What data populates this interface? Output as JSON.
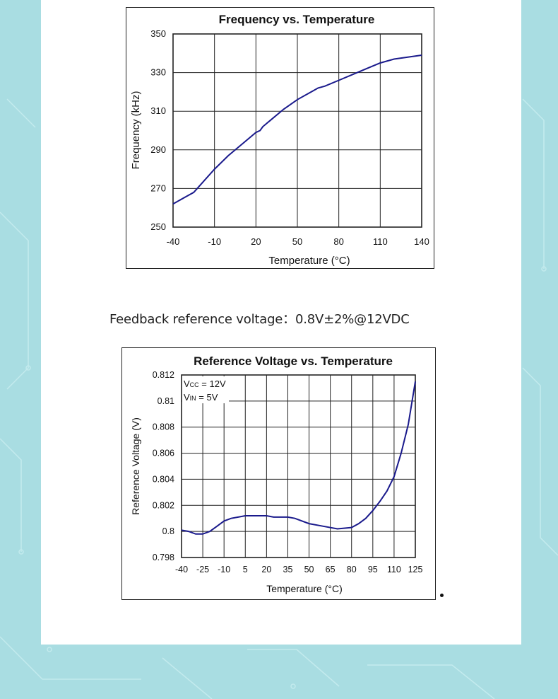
{
  "colors": {
    "background": "#a9dde2",
    "curve": "#1a1a8c",
    "grid": "#222222"
  },
  "caption": "Feedback reference voltage：0.8V±2%@12VDC",
  "chart_data": [
    {
      "type": "line",
      "title": "Frequency vs. Temperature",
      "xlabel": "Temperature (°C)",
      "ylabel": "Frequency (kHz)",
      "xlim": [
        -40,
        140
      ],
      "ylim": [
        250,
        350
      ],
      "xticks": [
        "-40",
        "-10",
        "20",
        "50",
        "80",
        "110",
        "140"
      ],
      "yticks": [
        "250",
        "270",
        "290",
        "310",
        "330",
        "350"
      ],
      "grid": true,
      "series": [
        {
          "x": [
            -40,
            -30,
            -25,
            -20,
            -10,
            0,
            10,
            20,
            23,
            25,
            30,
            40,
            50,
            60,
            65,
            70,
            80,
            90,
            100,
            110,
            120,
            130,
            140
          ],
          "y": [
            262,
            266,
            268,
            272,
            280,
            287,
            293,
            299,
            300,
            302,
            305,
            311,
            316,
            320,
            322,
            323,
            326,
            329,
            332,
            335,
            337,
            338,
            339
          ]
        }
      ]
    },
    {
      "type": "line",
      "title": "Reference Voltage vs. Temperature",
      "xlabel": "Temperature (°C)",
      "ylabel": "Reference Voltage (V)",
      "xlim": [
        -40,
        125
      ],
      "ylim": [
        0.798,
        0.812
      ],
      "xticks": [
        "-40",
        "-25",
        "-10",
        "5",
        "20",
        "35",
        "50",
        "65",
        "80",
        "95",
        "110",
        "125"
      ],
      "yticks": [
        "0.798",
        "0.8",
        "0.802",
        "0.804",
        "0.806",
        "0.808",
        "0.81",
        "0.812"
      ],
      "grid": true,
      "annotations": [
        {
          "main": "V",
          "sub": "CC",
          "rest": " = 12V"
        },
        {
          "main": "V",
          "sub": "IN",
          "rest": " = 5V"
        }
      ],
      "series": [
        {
          "x": [
            -40,
            -35,
            -30,
            -25,
            -20,
            -15,
            -10,
            -5,
            0,
            5,
            10,
            15,
            20,
            25,
            30,
            35,
            40,
            50,
            60,
            70,
            80,
            85,
            90,
            95,
            100,
            105,
            110,
            115,
            120,
            125
          ],
          "y": [
            0.8001,
            0.8,
            0.7998,
            0.7998,
            0.8,
            0.8004,
            0.8008,
            0.801,
            0.8011,
            0.8012,
            0.8012,
            0.8012,
            0.8012,
            0.8011,
            0.8011,
            0.8011,
            0.801,
            0.8006,
            0.8004,
            0.8002,
            0.8003,
            0.8006,
            0.801,
            0.8016,
            0.8023,
            0.8031,
            0.8042,
            0.806,
            0.8082,
            0.8115
          ]
        }
      ]
    }
  ]
}
